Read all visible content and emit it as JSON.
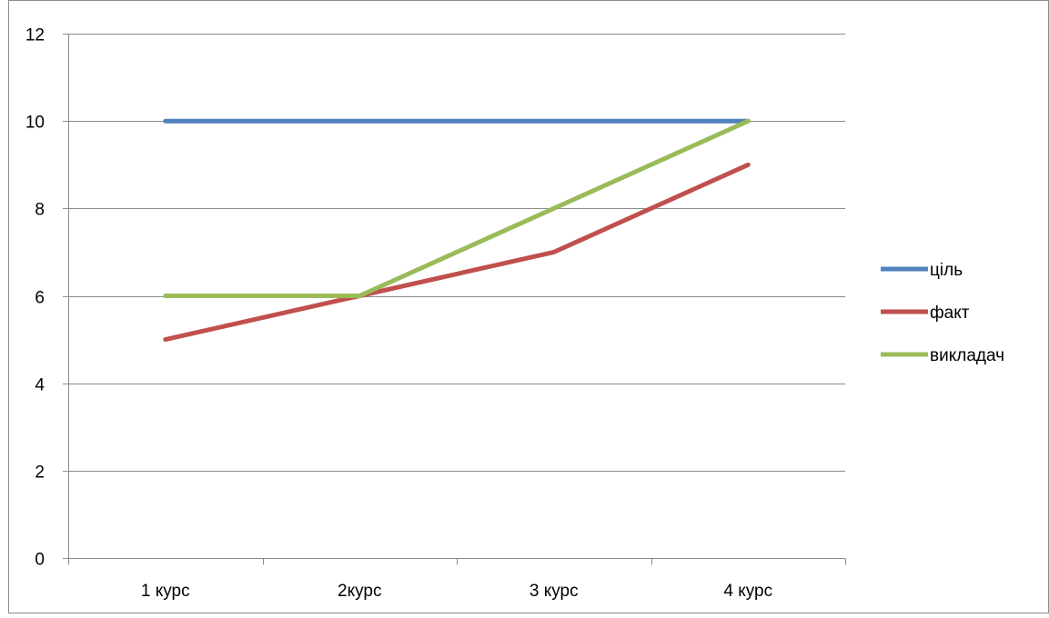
{
  "chart_data": {
    "type": "line",
    "title": "",
    "xlabel": "",
    "ylabel": "",
    "categories": [
      "1 курс",
      "2курс",
      "3 курс",
      "4 курс"
    ],
    "ylim": [
      0,
      12
    ],
    "yticks": [
      0,
      2,
      4,
      6,
      8,
      10,
      12
    ],
    "grid": "horizontal",
    "legend_position": "right",
    "series": [
      {
        "name": "ціль",
        "color": "#4F81BD",
        "values": [
          10,
          10,
          10,
          10
        ]
      },
      {
        "name": "факт",
        "color": "#C0504D",
        "values": [
          5,
          6,
          7,
          9
        ]
      },
      {
        "name": "викладач",
        "color": "#9BBB59",
        "values": [
          6,
          6,
          8,
          10
        ]
      }
    ]
  }
}
